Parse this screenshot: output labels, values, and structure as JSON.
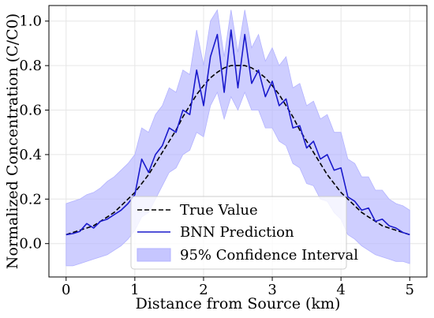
{
  "chart_data": {
    "type": "line",
    "title": "",
    "xlabel": "Distance from Source (km)",
    "ylabel": "Normalized Concentration (C/C0)",
    "xlim": [
      -0.25,
      5.25
    ],
    "ylim": [
      -0.15,
      1.07
    ],
    "xticks": [
      0,
      1,
      2,
      3,
      4,
      5
    ],
    "yticks": [
      0.0,
      0.2,
      0.4,
      0.6,
      0.8,
      1.0
    ],
    "grid": true,
    "legend_position": "bottom-center",
    "colors": {
      "true_value": "#000000",
      "prediction": "#1a1acc",
      "interval": "#b3b3ff",
      "grid": "#e6e6e6"
    },
    "legend": [
      {
        "key": "true",
        "label": "True Value"
      },
      {
        "key": "pred",
        "label": "BNN Prediction"
      },
      {
        "key": "ci",
        "label": "95% Confidence Interval"
      }
    ],
    "x": [
      0,
      0.1,
      0.2,
      0.3,
      0.4,
      0.5,
      0.6,
      0.7,
      0.8,
      0.9,
      1.0,
      1.1,
      1.2,
      1.3,
      1.4,
      1.5,
      1.6,
      1.7,
      1.8,
      1.9,
      2.0,
      2.1,
      2.2,
      2.3,
      2.4,
      2.5,
      2.6,
      2.7,
      2.8,
      2.9,
      3.0,
      3.1,
      3.2,
      3.3,
      3.4,
      3.5,
      3.6,
      3.7,
      3.8,
      3.9,
      4.0,
      4.1,
      4.2,
      4.3,
      4.4,
      4.5,
      4.6,
      4.7,
      4.8,
      4.9,
      5.0
    ],
    "series": [
      {
        "name": "True Value",
        "style": "dashed",
        "values": [
          0.04,
          0.05,
          0.06,
          0.07,
          0.08,
          0.1,
          0.12,
          0.14,
          0.17,
          0.2,
          0.23,
          0.27,
          0.31,
          0.36,
          0.41,
          0.46,
          0.51,
          0.57,
          0.62,
          0.67,
          0.71,
          0.745,
          0.77,
          0.79,
          0.8,
          0.8,
          0.8,
          0.79,
          0.77,
          0.745,
          0.71,
          0.67,
          0.62,
          0.57,
          0.51,
          0.46,
          0.41,
          0.36,
          0.31,
          0.27,
          0.23,
          0.2,
          0.17,
          0.14,
          0.12,
          0.1,
          0.08,
          0.07,
          0.06,
          0.05,
          0.04
        ]
      },
      {
        "name": "BNN Prediction",
        "style": "solid",
        "values": [
          0.04,
          0.045,
          0.055,
          0.09,
          0.07,
          0.1,
          0.11,
          0.13,
          0.15,
          0.18,
          0.22,
          0.38,
          0.32,
          0.4,
          0.44,
          0.52,
          0.5,
          0.6,
          0.58,
          0.78,
          0.62,
          0.84,
          0.94,
          0.68,
          0.96,
          0.7,
          0.94,
          0.72,
          0.78,
          0.66,
          0.73,
          0.62,
          0.65,
          0.52,
          0.53,
          0.43,
          0.46,
          0.38,
          0.4,
          0.33,
          0.34,
          0.21,
          0.19,
          0.15,
          0.16,
          0.1,
          0.11,
          0.08,
          0.07,
          0.05,
          0.04
        ]
      }
    ],
    "interval": {
      "name": "95% Confidence Interval",
      "lower": [
        -0.1,
        -0.1,
        -0.09,
        -0.08,
        -0.07,
        -0.06,
        -0.05,
        -0.03,
        -0.01,
        0.02,
        0.06,
        0.12,
        0.14,
        0.2,
        0.26,
        0.32,
        0.34,
        0.4,
        0.42,
        0.5,
        0.48,
        0.62,
        0.68,
        0.56,
        0.66,
        0.6,
        0.68,
        0.6,
        0.6,
        0.52,
        0.52,
        0.46,
        0.44,
        0.36,
        0.34,
        0.27,
        0.26,
        0.2,
        0.19,
        0.14,
        0.11,
        0.04,
        0.02,
        -0.01,
        -0.03,
        -0.05,
        -0.06,
        -0.07,
        -0.08,
        -0.08,
        -0.09
      ],
      "upper": [
        0.18,
        0.19,
        0.2,
        0.22,
        0.23,
        0.25,
        0.28,
        0.3,
        0.33,
        0.36,
        0.4,
        0.52,
        0.5,
        0.58,
        0.62,
        0.7,
        0.68,
        0.78,
        0.76,
        0.96,
        0.8,
        1.0,
        1.05,
        0.84,
        1.05,
        0.86,
        1.05,
        0.88,
        0.94,
        0.82,
        0.88,
        0.8,
        0.84,
        0.7,
        0.72,
        0.62,
        0.64,
        0.56,
        0.58,
        0.5,
        0.5,
        0.38,
        0.36,
        0.3,
        0.3,
        0.24,
        0.24,
        0.2,
        0.18,
        0.17,
        0.15
      ]
    }
  }
}
